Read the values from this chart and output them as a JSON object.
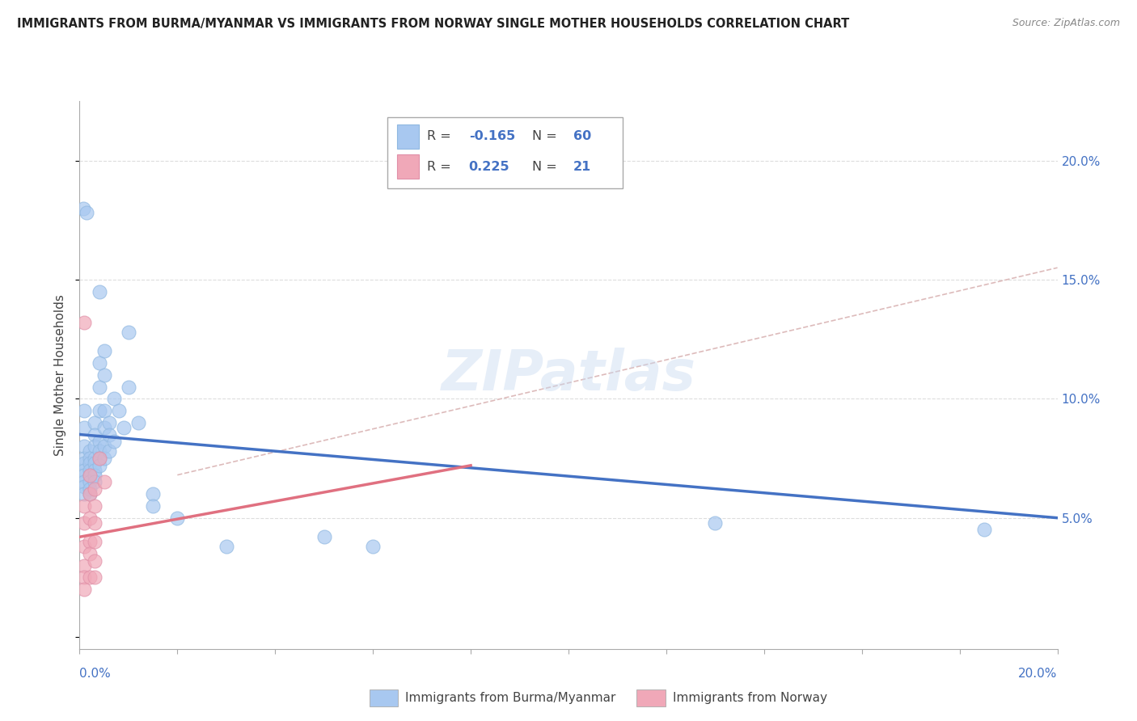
{
  "title": "IMMIGRANTS FROM BURMA/MYANMAR VS IMMIGRANTS FROM NORWAY SINGLE MOTHER HOUSEHOLDS CORRELATION CHART",
  "source": "Source: ZipAtlas.com",
  "ylabel": "Single Mother Households",
  "xlim": [
    0.0,
    0.2
  ],
  "ylim": [
    -0.005,
    0.225
  ],
  "color_blue": "#a8c8f0",
  "color_pink": "#f0a8b8",
  "color_blue_line": "#4472C4",
  "color_pink_line": "#E07080",
  "color_trend": "#ddbbbb",
  "blue_scatter": [
    [
      0.0008,
      0.18
    ],
    [
      0.0015,
      0.178
    ],
    [
      0.001,
      0.095
    ],
    [
      0.001,
      0.088
    ],
    [
      0.001,
      0.08
    ],
    [
      0.001,
      0.075
    ],
    [
      0.001,
      0.073
    ],
    [
      0.001,
      0.07
    ],
    [
      0.001,
      0.068
    ],
    [
      0.001,
      0.065
    ],
    [
      0.001,
      0.063
    ],
    [
      0.001,
      0.06
    ],
    [
      0.002,
      0.078
    ],
    [
      0.002,
      0.075
    ],
    [
      0.002,
      0.073
    ],
    [
      0.002,
      0.07
    ],
    [
      0.002,
      0.068
    ],
    [
      0.002,
      0.065
    ],
    [
      0.002,
      0.062
    ],
    [
      0.002,
      0.06
    ],
    [
      0.003,
      0.09
    ],
    [
      0.003,
      0.085
    ],
    [
      0.003,
      0.08
    ],
    [
      0.003,
      0.075
    ],
    [
      0.003,
      0.073
    ],
    [
      0.003,
      0.07
    ],
    [
      0.003,
      0.068
    ],
    [
      0.003,
      0.065
    ],
    [
      0.004,
      0.145
    ],
    [
      0.004,
      0.115
    ],
    [
      0.004,
      0.105
    ],
    [
      0.004,
      0.095
    ],
    [
      0.004,
      0.082
    ],
    [
      0.004,
      0.078
    ],
    [
      0.004,
      0.075
    ],
    [
      0.004,
      0.072
    ],
    [
      0.005,
      0.12
    ],
    [
      0.005,
      0.11
    ],
    [
      0.005,
      0.095
    ],
    [
      0.005,
      0.088
    ],
    [
      0.005,
      0.08
    ],
    [
      0.005,
      0.075
    ],
    [
      0.006,
      0.09
    ],
    [
      0.006,
      0.085
    ],
    [
      0.006,
      0.078
    ],
    [
      0.007,
      0.1
    ],
    [
      0.007,
      0.082
    ],
    [
      0.008,
      0.095
    ],
    [
      0.009,
      0.088
    ],
    [
      0.01,
      0.128
    ],
    [
      0.01,
      0.105
    ],
    [
      0.012,
      0.09
    ],
    [
      0.015,
      0.06
    ],
    [
      0.015,
      0.055
    ],
    [
      0.02,
      0.05
    ],
    [
      0.03,
      0.038
    ],
    [
      0.05,
      0.042
    ],
    [
      0.06,
      0.038
    ],
    [
      0.13,
      0.048
    ],
    [
      0.185,
      0.045
    ]
  ],
  "pink_scatter": [
    [
      0.001,
      0.132
    ],
    [
      0.001,
      0.055
    ],
    [
      0.001,
      0.048
    ],
    [
      0.001,
      0.038
    ],
    [
      0.001,
      0.03
    ],
    [
      0.001,
      0.025
    ],
    [
      0.001,
      0.02
    ],
    [
      0.002,
      0.068
    ],
    [
      0.002,
      0.06
    ],
    [
      0.002,
      0.05
    ],
    [
      0.002,
      0.04
    ],
    [
      0.002,
      0.035
    ],
    [
      0.002,
      0.025
    ],
    [
      0.003,
      0.062
    ],
    [
      0.003,
      0.055
    ],
    [
      0.003,
      0.048
    ],
    [
      0.003,
      0.04
    ],
    [
      0.003,
      0.032
    ],
    [
      0.003,
      0.025
    ],
    [
      0.004,
      0.075
    ],
    [
      0.005,
      0.065
    ]
  ],
  "blue_line_x": [
    0.0,
    0.2
  ],
  "blue_line_y": [
    0.085,
    0.05
  ],
  "pink_line_x": [
    0.0,
    0.08
  ],
  "pink_line_y": [
    0.042,
    0.072
  ],
  "trend_line_x": [
    0.02,
    0.2
  ],
  "trend_line_y": [
    0.068,
    0.155
  ]
}
